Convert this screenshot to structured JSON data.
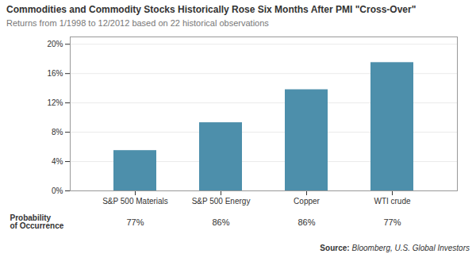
{
  "chart_data": {
    "type": "bar",
    "title": "Commodities and Commodity Stocks Historically Rose Six Months After PMI \"Cross-Over\"",
    "subtitle": "Returns from 1/1998 to 12/2012 based on 22 historical observations",
    "categories": [
      "S&P 500 Materials",
      "S&P 500 Energy",
      "Copper",
      "WTI crude"
    ],
    "values": [
      0.055,
      0.093,
      0.138,
      0.175
    ],
    "color": "#4d8fab",
    "ylim": [
      0,
      0.21
    ],
    "yticks": [
      {
        "value": 0,
        "label": "0%"
      },
      {
        "value": 0.04,
        "label": "4%"
      },
      {
        "value": 0.08,
        "label": "8%"
      },
      {
        "value": 0.12,
        "label": "12%"
      },
      {
        "value": 0.16,
        "label": "16%"
      },
      {
        "value": 0.2,
        "label": "20%"
      }
    ],
    "grid": true,
    "probabilities": [
      "77%",
      "86%",
      "86%",
      "77%"
    ],
    "probability_label": [
      "Probability",
      "of Occurrence"
    ],
    "source_label": "Source:",
    "source": "Bloomberg, U.S. Global Investors"
  }
}
